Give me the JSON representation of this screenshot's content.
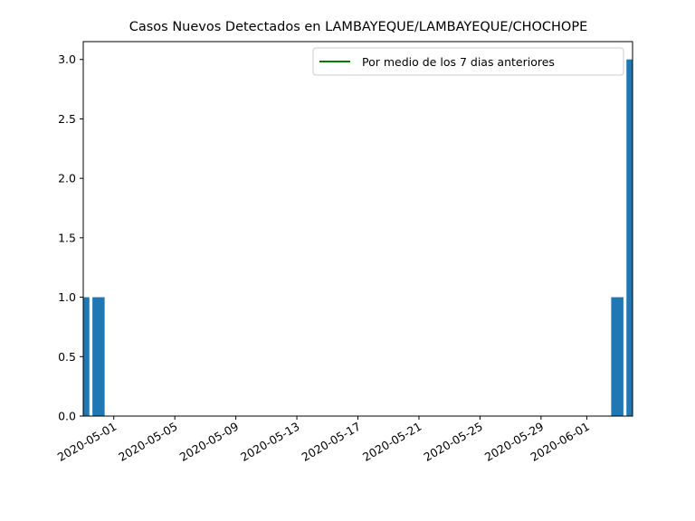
{
  "chart_data": {
    "type": "bar",
    "title": "Casos Nuevos Detectados en LAMBAYEQUE/LAMBAYEQUE/CHOCHOPE",
    "xlabel": "",
    "ylabel": "",
    "x_range": [
      "2020-04-29",
      "2020-06-04"
    ],
    "ylim": [
      0,
      3.15
    ],
    "y_ticks": [
      "0.0",
      "0.5",
      "1.0",
      "1.5",
      "2.0",
      "2.5",
      "3.0"
    ],
    "x_ticks": [
      "2020-05-01",
      "2020-05-05",
      "2020-05-09",
      "2020-05-13",
      "2020-05-17",
      "2020-05-21",
      "2020-05-25",
      "2020-05-29",
      "2020-06-01"
    ],
    "bars": [
      {
        "date": "2020-04-29",
        "value": 1
      },
      {
        "date": "2020-04-30",
        "value": 1
      },
      {
        "date": "2020-06-03",
        "value": 1
      },
      {
        "date": "2020-06-04",
        "value": 3
      }
    ],
    "bar_color": "#1f77b4",
    "legend": {
      "label": "Por medio de los 7 dias anteriores",
      "color": "#008000",
      "placement": "upper-right"
    },
    "grid": false
  }
}
